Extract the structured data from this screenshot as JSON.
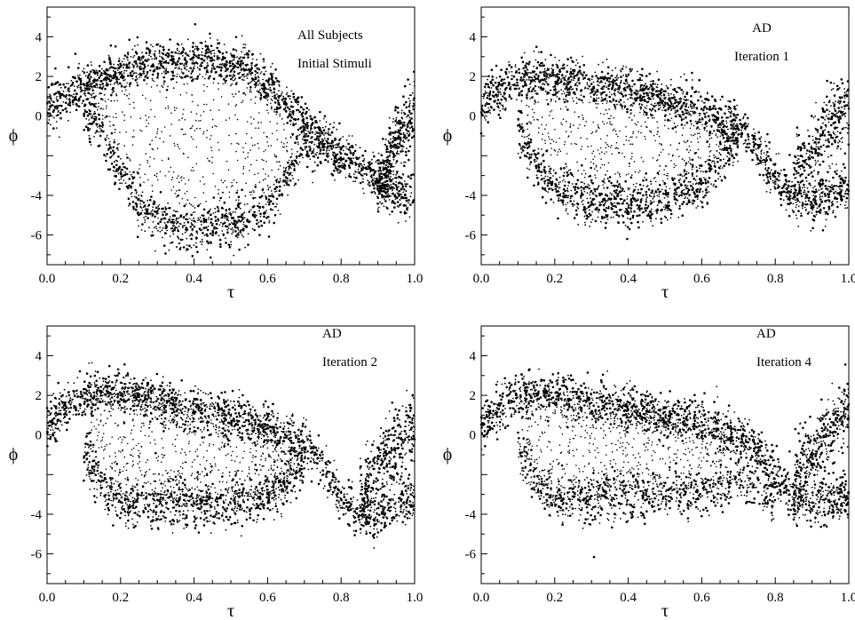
{
  "chart_data": [
    {
      "type": "scatter",
      "panel": "top-left",
      "annotations": [
        "All Subjects",
        "Initial Stimuli"
      ],
      "xlabel": "τ",
      "ylabel": "ϕ",
      "xlim": [
        0.0,
        1.0
      ],
      "ylim": [
        -7.5,
        5.5
      ],
      "xticks": [
        "0.0",
        "0.2",
        "0.4",
        "0.6",
        "0.8",
        "1.0"
      ],
      "yticks": [
        "4",
        "2",
        "0",
        "-4",
        "-6"
      ],
      "grid": false,
      "series": [
        {
          "upper_band": [
            [
              0.0,
              0.3
            ],
            [
              0.05,
              1.0
            ],
            [
              0.1,
              1.5
            ],
            [
              0.15,
              1.9
            ],
            [
              0.2,
              2.3
            ],
            [
              0.3,
              2.7
            ],
            [
              0.4,
              2.8
            ],
            [
              0.5,
              2.7
            ],
            [
              0.55,
              2.4
            ],
            [
              0.6,
              1.5
            ],
            [
              0.65,
              0.6
            ],
            [
              0.7,
              -0.3
            ],
            [
              0.75,
              -1.1
            ],
            [
              0.8,
              -1.9
            ],
            [
              0.85,
              -2.6
            ],
            [
              0.9,
              -3.2
            ],
            [
              0.95,
              -3.8
            ],
            [
              1.0,
              -4.3
            ]
          ],
          "lower_band": [
            [
              0.1,
              0.5
            ],
            [
              0.15,
              -1.0
            ],
            [
              0.2,
              -3.0
            ],
            [
              0.25,
              -4.5
            ],
            [
              0.3,
              -5.3
            ],
            [
              0.4,
              -5.7
            ],
            [
              0.5,
              -5.5
            ],
            [
              0.6,
              -4.6
            ],
            [
              0.65,
              -3.2
            ],
            [
              0.7,
              -1.5
            ],
            [
              0.75,
              -1.5
            ],
            [
              0.8,
              -2.2
            ]
          ],
          "right_tail": [
            [
              0.9,
              -3.5
            ],
            [
              0.95,
              -1.5
            ],
            [
              1.0,
              0.5
            ]
          ]
        }
      ]
    },
    {
      "type": "scatter",
      "panel": "top-right",
      "annotations": [
        "AD",
        "Iteration 1"
      ],
      "xlabel": "τ",
      "ylabel": "ϕ",
      "xlim": [
        0.0,
        1.0
      ],
      "ylim": [
        -7.5,
        5.5
      ],
      "xticks": [
        "0.0",
        "0.2",
        "0.4",
        "0.6",
        "0.8",
        "1.0"
      ],
      "yticks": [
        "4",
        "2",
        "0",
        "-4",
        "-6"
      ],
      "grid": false,
      "series": [
        {
          "upper_band": [
            [
              0.0,
              0.5
            ],
            [
              0.05,
              1.3
            ],
            [
              0.1,
              1.9
            ],
            [
              0.2,
              2.0
            ],
            [
              0.3,
              1.6
            ],
            [
              0.4,
              1.3
            ],
            [
              0.5,
              0.9
            ],
            [
              0.6,
              0.3
            ],
            [
              0.7,
              -0.5
            ],
            [
              0.75,
              -1.6
            ],
            [
              0.8,
              -3.2
            ],
            [
              0.85,
              -4.3
            ],
            [
              0.9,
              -4.4
            ],
            [
              0.95,
              -4.0
            ],
            [
              1.0,
              -3.6
            ]
          ],
          "lower_band": [
            [
              0.1,
              -0.5
            ],
            [
              0.15,
              -2.5
            ],
            [
              0.2,
              -3.6
            ],
            [
              0.3,
              -4.3
            ],
            [
              0.4,
              -4.5
            ],
            [
              0.5,
              -4.2
            ],
            [
              0.6,
              -3.4
            ],
            [
              0.65,
              -2.0
            ],
            [
              0.7,
              -1.0
            ]
          ],
          "right_tail": [
            [
              0.85,
              -3.0
            ],
            [
              0.9,
              -2.0
            ],
            [
              0.95,
              -0.5
            ],
            [
              1.0,
              0.2
            ]
          ]
        }
      ]
    },
    {
      "type": "scatter",
      "panel": "bottom-left",
      "annotations": [
        "AD",
        "Iteration 2"
      ],
      "xlabel": "τ",
      "ylabel": "ϕ",
      "xlim": [
        0.0,
        1.0
      ],
      "ylim": [
        -7.5,
        5.5
      ],
      "xticks": [
        "0.0",
        "0.2",
        "0.4",
        "0.6",
        "0.8",
        "1.0"
      ],
      "yticks": [
        "4",
        "2",
        "0",
        "-4",
        "-6"
      ],
      "grid": false,
      "series": [
        {
          "upper_band": [
            [
              0.0,
              0.5
            ],
            [
              0.05,
              1.3
            ],
            [
              0.1,
              2.0
            ],
            [
              0.2,
              2.2
            ],
            [
              0.3,
              1.7
            ],
            [
              0.4,
              1.2
            ],
            [
              0.5,
              0.9
            ],
            [
              0.6,
              0.3
            ],
            [
              0.7,
              -0.5
            ],
            [
              0.75,
              -1.5
            ],
            [
              0.8,
              -3.2
            ],
            [
              0.85,
              -4.0
            ],
            [
              0.9,
              -4.0
            ],
            [
              0.95,
              -3.5
            ],
            [
              1.0,
              -3.2
            ]
          ],
          "lower_band": [
            [
              0.1,
              -0.8
            ],
            [
              0.15,
              -2.5
            ],
            [
              0.2,
              -3.3
            ],
            [
              0.3,
              -3.5
            ],
            [
              0.4,
              -3.4
            ],
            [
              0.5,
              -3.4
            ],
            [
              0.6,
              -3.2
            ],
            [
              0.65,
              -2.4
            ],
            [
              0.7,
              -1.5
            ]
          ],
          "right_tail": [
            [
              0.85,
              -3.0
            ],
            [
              0.9,
              -1.8
            ],
            [
              0.95,
              -0.5
            ],
            [
              1.0,
              0.3
            ]
          ]
        }
      ]
    },
    {
      "type": "scatter",
      "panel": "bottom-right",
      "annotations": [
        "AD",
        "Iteration 4"
      ],
      "xlabel": "τ",
      "ylabel": "ϕ",
      "xlim": [
        0.0,
        1.0
      ],
      "ylim": [
        -7.5,
        5.5
      ],
      "xticks": [
        "0.0",
        "0.2",
        "0.4",
        "0.6",
        "0.8",
        "1.0"
      ],
      "yticks": [
        "4",
        "2",
        "0",
        "-4",
        "-6"
      ],
      "grid": false,
      "series": [
        {
          "upper_band": [
            [
              0.0,
              0.5
            ],
            [
              0.05,
              1.3
            ],
            [
              0.1,
              2.0
            ],
            [
              0.2,
              2.1
            ],
            [
              0.3,
              1.6
            ],
            [
              0.4,
              1.3
            ],
            [
              0.5,
              1.0
            ],
            [
              0.6,
              0.6
            ],
            [
              0.7,
              0.0
            ],
            [
              0.75,
              -0.8
            ],
            [
              0.8,
              -2.0
            ],
            [
              0.85,
              -3.2
            ],
            [
              0.9,
              -3.5
            ],
            [
              0.95,
              -3.3
            ],
            [
              1.0,
              -3.0
            ]
          ],
          "lower_band": [
            [
              0.1,
              -0.8
            ],
            [
              0.15,
              -2.3
            ],
            [
              0.2,
              -3.1
            ],
            [
              0.3,
              -3.3
            ],
            [
              0.4,
              -3.0
            ],
            [
              0.5,
              -2.9
            ],
            [
              0.6,
              -3.0
            ],
            [
              0.65,
              -2.7
            ],
            [
              0.7,
              -2.0
            ],
            [
              0.75,
              -2.6
            ],
            [
              0.8,
              -3.4
            ]
          ],
          "right_tail": [
            [
              0.85,
              -2.5
            ],
            [
              0.9,
              -1.2
            ],
            [
              0.95,
              0.3
            ],
            [
              1.0,
              1.4
            ]
          ]
        }
      ]
    }
  ]
}
